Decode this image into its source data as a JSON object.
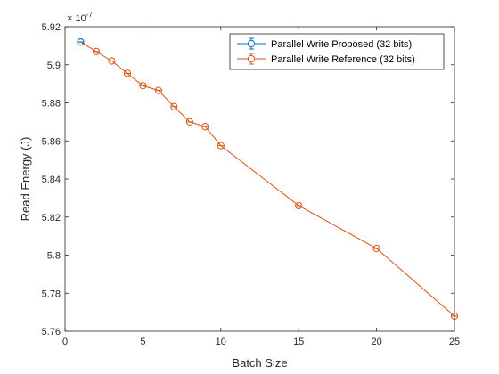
{
  "chart_data": {
    "type": "line",
    "xlabel": "Batch Size",
    "ylabel": "Read Energy (J)",
    "y_exponent_label": "× 10",
    "y_exponent_power": "-7",
    "xlim": [
      0,
      25
    ],
    "ylim": [
      5.76,
      5.92
    ],
    "x_ticks": [
      0,
      5,
      10,
      15,
      20,
      25
    ],
    "x_tick_labels": [
      "0",
      "5",
      "10",
      "15",
      "20",
      "25"
    ],
    "y_ticks": [
      5.76,
      5.78,
      5.8,
      5.82,
      5.84,
      5.86,
      5.88,
      5.9,
      5.92
    ],
    "y_tick_labels": [
      "5.76",
      "5.78",
      "5.8",
      "5.82",
      "5.84",
      "5.86",
      "5.88",
      "5.9",
      "5.92"
    ],
    "y_scale_multiplier": 1e-07,
    "grid": false,
    "legend_position": "top-right",
    "series": [
      {
        "name": "Parallel Write Proposed (32 bits)",
        "color": "#0072BD",
        "marker": "circle-errorbar",
        "x": [
          1
        ],
        "y": [
          5.912
        ]
      },
      {
        "name": "Parallel Write Reference (32 bits)",
        "color": "#D95319",
        "marker": "circle-errorbar",
        "x": [
          1,
          2,
          3,
          4,
          5,
          6,
          7,
          8,
          9,
          10,
          15,
          20,
          25
        ],
        "y": [
          5.912,
          5.907,
          5.902,
          5.8955,
          5.889,
          5.8865,
          5.878,
          5.87,
          5.8675,
          5.8575,
          5.826,
          5.8035,
          5.768
        ]
      }
    ]
  }
}
